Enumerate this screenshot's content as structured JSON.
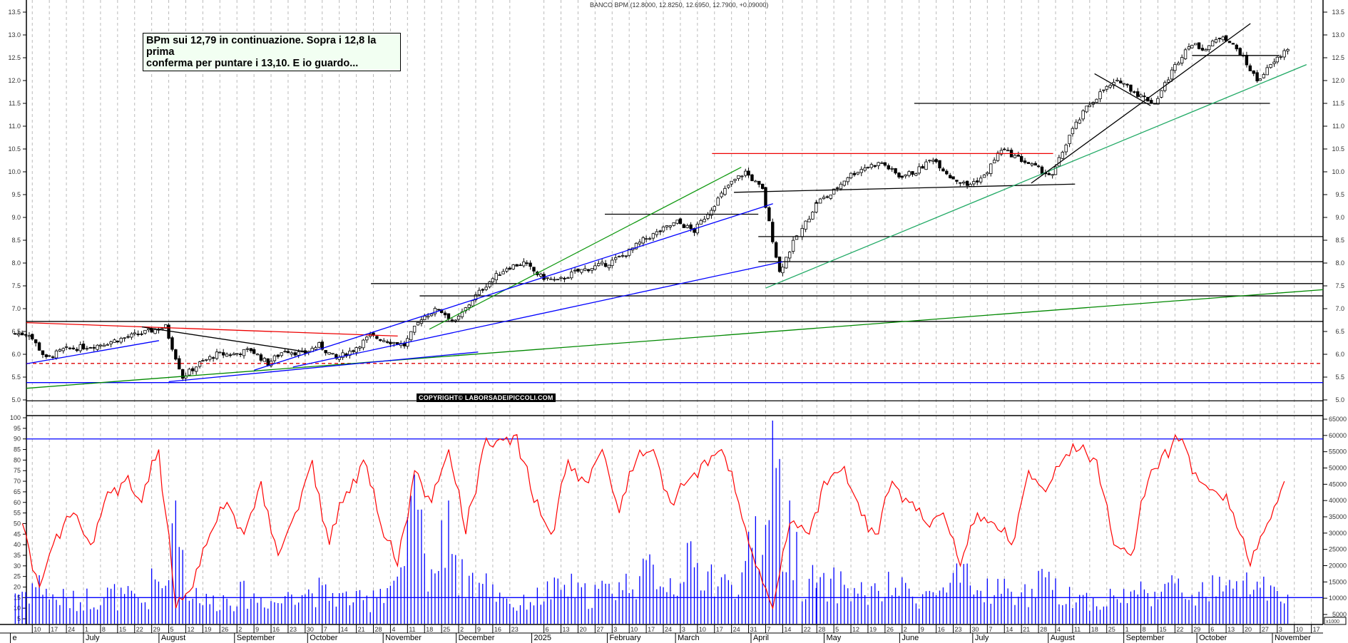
{
  "header": {
    "title": "BANCO BPM (12.8000, 12.8250, 12.6950, 12.7900, +0.09000)"
  },
  "annotation": {
    "line1": "BPm sui 12,79 in continuazione. Sopra i 12,8 la prima",
    "line2": "conferma per puntare i 13,10. E io guardo..."
  },
  "copyright": "COPYRIGHT© LABORSADEIPICCOLI.COM",
  "chart_data": [
    {
      "type": "candlestick",
      "title": "BANCO BPM",
      "ylim": [
        4.9,
        13.7
      ],
      "yticks": [
        "5.0",
        "5.5",
        "6.0",
        "6.5",
        "7.0",
        "7.5",
        "8.0",
        "8.5",
        "9.0",
        "9.5",
        "10.0",
        "10.5",
        "11.0",
        "11.5",
        "12.0",
        "12.5",
        "13.0",
        "13.5"
      ],
      "grid": true,
      "weekly_close": [
        [
          "2024-06-03",
          6.45
        ],
        [
          "2024-06-10",
          5.9
        ],
        [
          "2024-06-17",
          6.1
        ],
        [
          "2024-06-24",
          6.15
        ],
        [
          "2024-07-01",
          6.2
        ],
        [
          "2024-07-08",
          6.3
        ],
        [
          "2024-07-15",
          6.4
        ],
        [
          "2024-07-22",
          6.5
        ],
        [
          "2024-07-29",
          6.6
        ],
        [
          "2024-08-05",
          5.5
        ],
        [
          "2024-08-12",
          5.8
        ],
        [
          "2024-08-19",
          6.0
        ],
        [
          "2024-08-26",
          6.0
        ],
        [
          "2024-09-02",
          6.1
        ],
        [
          "2024-09-09",
          5.8
        ],
        [
          "2024-09-16",
          6.1
        ],
        [
          "2024-09-23",
          6.0
        ],
        [
          "2024-09-30",
          6.2
        ],
        [
          "2024-10-07",
          5.9
        ],
        [
          "2024-10-14",
          6.1
        ],
        [
          "2024-10-21",
          6.4
        ],
        [
          "2024-10-28",
          6.3
        ],
        [
          "2024-11-04",
          6.2
        ],
        [
          "2024-11-11",
          6.8
        ],
        [
          "2024-11-18",
          7.0
        ],
        [
          "2024-11-25",
          6.7
        ],
        [
          "2024-12-02",
          7.2
        ],
        [
          "2024-12-09",
          7.6
        ],
        [
          "2024-12-16",
          7.9
        ],
        [
          "2024-12-23",
          8.0
        ],
        [
          "2024-12-30",
          7.7
        ],
        [
          "2025-01-06",
          7.6
        ],
        [
          "2025-01-13",
          7.8
        ],
        [
          "2025-01-20",
          7.9
        ],
        [
          "2025-01-27",
          8.0
        ],
        [
          "2025-02-03",
          8.2
        ],
        [
          "2025-02-10",
          8.5
        ],
        [
          "2025-02-17",
          8.7
        ],
        [
          "2025-02-24",
          8.9
        ],
        [
          "2025-03-03",
          8.7
        ],
        [
          "2025-03-10",
          9.2
        ],
        [
          "2025-03-17",
          9.7
        ],
        [
          "2025-03-24",
          10.0
        ],
        [
          "2025-03-31",
          9.6
        ],
        [
          "2025-04-07",
          7.8
        ],
        [
          "2025-04-14",
          8.6
        ],
        [
          "2025-04-22",
          9.3
        ],
        [
          "2025-04-28",
          9.5
        ],
        [
          "2025-05-05",
          9.9
        ],
        [
          "2025-05-12",
          10.1
        ],
        [
          "2025-05-19",
          10.2
        ],
        [
          "2025-05-26",
          9.9
        ],
        [
          "2025-06-02",
          10.0
        ],
        [
          "2025-06-09",
          10.3
        ],
        [
          "2025-06-16",
          9.9
        ],
        [
          "2025-06-23",
          9.7
        ],
        [
          "2025-06-30",
          9.9
        ],
        [
          "2025-07-07",
          10.5
        ],
        [
          "2025-07-14",
          10.3
        ],
        [
          "2025-07-21",
          10.1
        ],
        [
          "2025-07-28",
          9.9
        ],
        [
          "2025-08-04",
          10.8
        ],
        [
          "2025-08-11",
          11.4
        ],
        [
          "2025-08-18",
          11.8
        ],
        [
          "2025-08-25",
          12.0
        ],
        [
          "2025-09-01",
          11.7
        ],
        [
          "2025-09-08",
          11.5
        ],
        [
          "2025-09-15",
          12.2
        ],
        [
          "2025-09-22",
          12.8
        ],
        [
          "2025-09-29",
          12.7
        ],
        [
          "2025-10-06",
          13.0
        ],
        [
          "2025-10-13",
          12.6
        ],
        [
          "2025-10-20",
          12.0
        ],
        [
          "2025-10-27",
          12.4
        ],
        [
          "2025-11-03",
          12.79
        ]
      ],
      "lines": [
        {
          "from": [
            "2024-05-20",
            4.98
          ],
          "to": [
            "2025-11-30",
            4.98
          ],
          "color": "#000000"
        },
        {
          "from": [
            "2024-05-20",
            6.72
          ],
          "to": [
            "2025-11-30",
            6.72
          ],
          "color": "#000000"
        },
        {
          "from": [
            "2024-05-20",
            5.8
          ],
          "to": [
            "2025-11-30",
            5.8
          ],
          "color": "#dd0000",
          "dashed": true
        },
        {
          "from": [
            "2024-05-20",
            5.38
          ],
          "to": [
            "2025-11-30",
            5.38
          ],
          "color": "#0000ff"
        },
        {
          "from": [
            "2024-05-25",
            6.72
          ],
          "to": [
            "2024-11-07",
            6.4
          ],
          "color": "#ee0000"
        },
        {
          "from": [
            "2025-03-16",
            10.4
          ],
          "to": [
            "2025-08-03",
            10.4
          ],
          "color": "#ee0000"
        },
        {
          "from": [
            "2024-10-27",
            7.55
          ],
          "to": [
            "2025-11-30",
            7.55
          ],
          "color": "#000000"
        },
        {
          "from": [
            "2024-11-16",
            7.28
          ],
          "to": [
            "2025-11-30",
            7.28
          ],
          "color": "#000000"
        },
        {
          "from": [
            "2025-04-04",
            8.03
          ],
          "to": [
            "2025-11-30",
            8.03
          ],
          "color": "#000000"
        },
        {
          "from": [
            "2025-04-04",
            8.58
          ],
          "to": [
            "2025-11-30",
            8.58
          ],
          "color": "#000000"
        },
        {
          "from": [
            "2025-01-31",
            9.07
          ],
          "to": [
            "2025-04-04",
            9.07
          ],
          "color": "#000000"
        },
        {
          "from": [
            "2025-03-25",
            9.55
          ],
          "to": [
            "2025-08-12",
            9.73
          ],
          "color": "#000000"
        },
        {
          "from": [
            "2025-06-07",
            11.5
          ],
          "to": [
            "2025-10-31",
            11.5
          ],
          "color": "#000000"
        },
        {
          "from": [
            "2025-09-29",
            12.55
          ],
          "to": [
            "2025-11-04",
            12.55
          ],
          "color": "#000000"
        },
        {
          "from": [
            "2024-05-25",
            5.2
          ],
          "to": [
            "2025-11-30",
            7.45
          ],
          "color": "#008800"
        },
        {
          "from": [
            "2025-04-07",
            7.45
          ],
          "to": [
            "2025-11-15",
            12.35
          ],
          "color": "#22aa66"
        },
        {
          "from": [
            "2024-11-20",
            6.55
          ],
          "to": [
            "2025-03-28",
            10.1
          ],
          "color": "#119911"
        },
        {
          "from": [
            "2024-06-03",
            5.75
          ],
          "to": [
            "2024-08-01",
            6.3
          ],
          "color": "#0000ff"
        },
        {
          "from": [
            "2024-08-05",
            5.4
          ],
          "to": [
            "2024-12-10",
            6.05
          ],
          "color": "#0000ff"
        },
        {
          "from": [
            "2024-09-09",
            5.65
          ],
          "to": [
            "2025-04-10",
            9.3
          ],
          "color": "#0000ff"
        },
        {
          "from": [
            "2024-09-25",
            5.72
          ],
          "to": [
            "2025-04-14",
            8.03
          ],
          "color": "#0000ff"
        },
        {
          "from": [
            "2024-07-25",
            6.6
          ],
          "to": [
            "2024-10-01",
            6.05
          ],
          "color": "#000000"
        },
        {
          "from": [
            "2025-07-25",
            9.75
          ],
          "to": [
            "2025-10-23",
            13.25
          ],
          "color": "#000000"
        },
        {
          "from": [
            "2025-08-20",
            12.15
          ],
          "to": [
            "2025-09-12",
            11.45
          ],
          "color": "#000000"
        }
      ]
    },
    {
      "type": "line+bar",
      "left_ylim": [
        0,
        100
      ],
      "left_yticks": [
        "5",
        "10",
        "15",
        "20",
        "25",
        "30",
        "35",
        "40",
        "45",
        "50",
        "55",
        "60",
        "65",
        "70",
        "75",
        "80",
        "85",
        "90",
        "95",
        "100"
      ],
      "right_yticks": [
        "5000",
        "10000",
        "15000",
        "20000",
        "25000",
        "30000",
        "35000",
        "40000",
        "45000",
        "50000",
        "55000",
        "60000",
        "65000"
      ],
      "right_unit": "x1000",
      "levels": [
        {
          "value": 90,
          "color": "#0000ff"
        },
        {
          "value": 15,
          "color": "#0000ff"
        }
      ],
      "oscillator_color": "#ff0000",
      "volume_color": "#0000ff",
      "oscillator": [
        50,
        20,
        45,
        55,
        40,
        65,
        70,
        60,
        85,
        10,
        20,
        45,
        60,
        45,
        70,
        35,
        55,
        80,
        40,
        65,
        80,
        50,
        30,
        75,
        60,
        85,
        45,
        85,
        90,
        92,
        60,
        45,
        80,
        70,
        85,
        55,
        80,
        85,
        60,
        70,
        80,
        85,
        60,
        30,
        10,
        50,
        45,
        70,
        75,
        60,
        45,
        70,
        60,
        50,
        55,
        30,
        55,
        50,
        40,
        75,
        65,
        80,
        85,
        80,
        40,
        35,
        70,
        85,
        90,
        70,
        65,
        55,
        30,
        50,
        70
      ],
      "volume_thousands": [
        12,
        14,
        10,
        9,
        10,
        11,
        10,
        9,
        14,
        25,
        12,
        9,
        10,
        11,
        10,
        9,
        13,
        12,
        11,
        10,
        9,
        13,
        15,
        30,
        20,
        25,
        16,
        14,
        12,
        8,
        10,
        12,
        13,
        11,
        12,
        14,
        16,
        18,
        15,
        20,
        18,
        14,
        16,
        22,
        45,
        25,
        15,
        13,
        14,
        12,
        11,
        13,
        12,
        11,
        12,
        15,
        12,
        13,
        12,
        11,
        14,
        12,
        10,
        9,
        10,
        11,
        12,
        14,
        12,
        11,
        13,
        12,
        15,
        12,
        9
      ]
    }
  ],
  "xaxis": {
    "ticks": [
      [
        "2024-06-10",
        "10"
      ],
      [
        "2024-06-17",
        "17"
      ],
      [
        "2024-06-24",
        "24"
      ],
      [
        "2024-07-01",
        "1"
      ],
      [
        "2024-07-08",
        "8"
      ],
      [
        "2024-07-15",
        "15"
      ],
      [
        "2024-07-22",
        "22"
      ],
      [
        "2024-07-29",
        "29"
      ],
      [
        "2024-08-05",
        "5"
      ],
      [
        "2024-08-12",
        "12"
      ],
      [
        "2024-08-19",
        "19"
      ],
      [
        "2024-08-26",
        "26"
      ],
      [
        "2024-09-02",
        "2"
      ],
      [
        "2024-09-09",
        "9"
      ],
      [
        "2024-09-16",
        "16"
      ],
      [
        "2024-09-23",
        "23"
      ],
      [
        "2024-09-30",
        "30"
      ],
      [
        "2024-10-07",
        "7"
      ],
      [
        "2024-10-14",
        "14"
      ],
      [
        "2024-10-21",
        "21"
      ],
      [
        "2024-10-28",
        "28"
      ],
      [
        "2024-11-04",
        "4"
      ],
      [
        "2024-11-11",
        "11"
      ],
      [
        "2024-11-18",
        "18"
      ],
      [
        "2024-11-25",
        "25"
      ],
      [
        "2024-12-02",
        "2"
      ],
      [
        "2024-12-09",
        "9"
      ],
      [
        "2024-12-16",
        "16"
      ],
      [
        "2024-12-23",
        "23"
      ],
      [
        "2025-01-06",
        "6"
      ],
      [
        "2025-01-13",
        "13"
      ],
      [
        "2025-01-20",
        "20"
      ],
      [
        "2025-01-27",
        "27"
      ],
      [
        "2025-02-03",
        "3"
      ],
      [
        "2025-02-10",
        "10"
      ],
      [
        "2025-02-17",
        "17"
      ],
      [
        "2025-02-24",
        "24"
      ],
      [
        "2025-03-03",
        "3"
      ],
      [
        "2025-03-10",
        "10"
      ],
      [
        "2025-03-17",
        "17"
      ],
      [
        "2025-03-24",
        "24"
      ],
      [
        "2025-03-31",
        "31"
      ],
      [
        "2025-04-07",
        "7"
      ],
      [
        "2025-04-14",
        "14"
      ],
      [
        "2025-04-22",
        "22"
      ],
      [
        "2025-04-28",
        "28"
      ],
      [
        "2025-05-05",
        "5"
      ],
      [
        "2025-05-12",
        "12"
      ],
      [
        "2025-05-19",
        "19"
      ],
      [
        "2025-05-26",
        "26"
      ],
      [
        "2025-06-02",
        "2"
      ],
      [
        "2025-06-09",
        "9"
      ],
      [
        "2025-06-16",
        "16"
      ],
      [
        "2025-06-23",
        "23"
      ],
      [
        "2025-06-30",
        "30"
      ],
      [
        "2025-07-07",
        "7"
      ],
      [
        "2025-07-14",
        "14"
      ],
      [
        "2025-07-21",
        "21"
      ],
      [
        "2025-07-28",
        "28"
      ],
      [
        "2025-08-04",
        "4"
      ],
      [
        "2025-08-11",
        "11"
      ],
      [
        "2025-08-18",
        "18"
      ],
      [
        "2025-08-25",
        "25"
      ],
      [
        "2025-09-01",
        "1"
      ],
      [
        "2025-09-08",
        "8"
      ],
      [
        "2025-09-15",
        "15"
      ],
      [
        "2025-09-22",
        "22"
      ],
      [
        "2025-09-29",
        "29"
      ],
      [
        "2025-10-06",
        "6"
      ],
      [
        "2025-10-13",
        "13"
      ],
      [
        "2025-10-20",
        "20"
      ],
      [
        "2025-10-27",
        "27"
      ],
      [
        "2025-11-03",
        "3"
      ],
      [
        "2025-11-10",
        "10"
      ],
      [
        "2025-11-17",
        "17"
      ]
    ],
    "months": [
      [
        "2024-06-01",
        "e"
      ],
      [
        "2024-07-01",
        "July"
      ],
      [
        "2024-08-01",
        "August"
      ],
      [
        "2024-09-01",
        "September"
      ],
      [
        "2024-10-01",
        "October"
      ],
      [
        "2024-11-01",
        "November"
      ],
      [
        "2024-12-01",
        "December"
      ],
      [
        "2025-01-01",
        "2025"
      ],
      [
        "2025-02-01",
        "February"
      ],
      [
        "2025-03-01",
        "March"
      ],
      [
        "2025-04-01",
        "April"
      ],
      [
        "2025-05-01",
        "May"
      ],
      [
        "2025-06-01",
        "June"
      ],
      [
        "2025-07-01",
        "July"
      ],
      [
        "2025-08-01",
        "August"
      ],
      [
        "2025-09-01",
        "September"
      ],
      [
        "2025-10-01",
        "October"
      ],
      [
        "2025-11-01",
        "November"
      ]
    ]
  }
}
